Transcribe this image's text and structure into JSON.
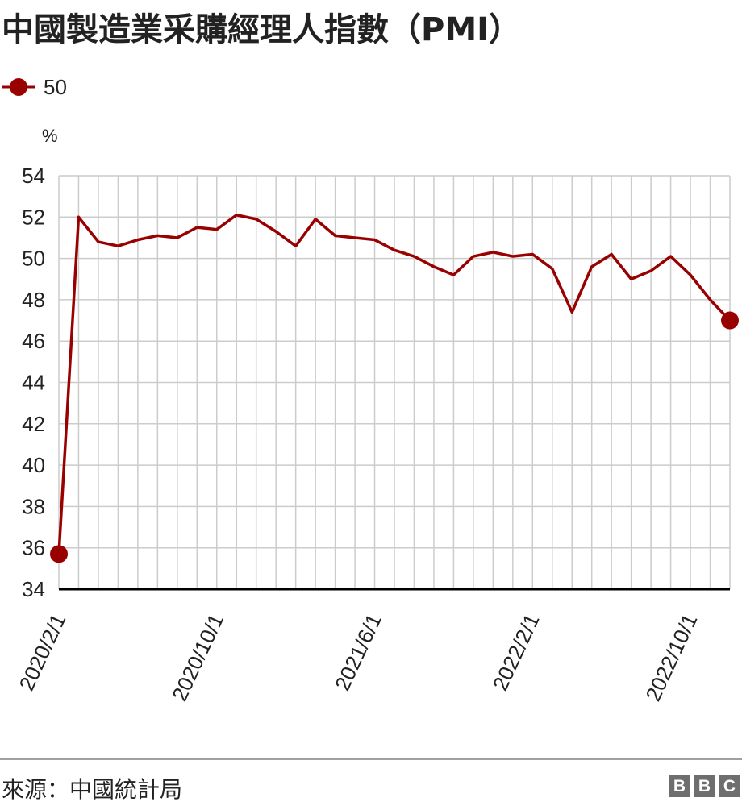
{
  "title": "中國製造業采購經理人指數（PMI）",
  "legend": {
    "label": "50"
  },
  "unit": "%",
  "source": "來源：中國統計局",
  "logo": [
    "B",
    "B",
    "C"
  ],
  "colors": {
    "line": "#990000",
    "grid": "#cccccc",
    "axis": "#000000",
    "text": "#222222"
  },
  "chart_data": {
    "type": "line",
    "title": "中國製造業采購經理人指數（PMI）",
    "ylabel": "%",
    "ylim": [
      34,
      54
    ],
    "yticks": [
      34,
      36,
      38,
      40,
      42,
      44,
      46,
      48,
      50,
      52,
      54
    ],
    "grid": true,
    "legend_position": "top-left",
    "xtick_labels": [
      {
        "index": 0,
        "label": "2020/2/1"
      },
      {
        "index": 8,
        "label": "2020/10/1"
      },
      {
        "index": 16,
        "label": "2021/6/1"
      },
      {
        "index": 24,
        "label": "2022/2/1"
      },
      {
        "index": 32,
        "label": "2022/10/1"
      }
    ],
    "x": [
      "2020/2",
      "2020/3",
      "2020/4",
      "2020/5",
      "2020/6",
      "2020/7",
      "2020/8",
      "2020/9",
      "2020/10",
      "2020/11",
      "2020/12",
      "2021/1",
      "2021/2",
      "2021/3",
      "2021/4",
      "2021/5",
      "2021/6",
      "2021/7",
      "2021/8",
      "2021/9",
      "2021/10",
      "2021/11",
      "2021/12",
      "2022/1",
      "2022/2",
      "2022/3",
      "2022/4",
      "2022/5",
      "2022/6",
      "2022/7",
      "2022/8",
      "2022/9",
      "2022/10",
      "2022/11",
      "2022/12"
    ],
    "series": [
      {
        "name": "50",
        "values": [
          35.7,
          52.0,
          50.8,
          50.6,
          50.9,
          51.1,
          51.0,
          51.5,
          51.4,
          52.1,
          51.9,
          51.3,
          50.6,
          51.9,
          51.1,
          51.0,
          50.9,
          50.4,
          50.1,
          49.6,
          49.2,
          50.1,
          50.3,
          50.1,
          50.2,
          49.5,
          47.4,
          49.6,
          50.2,
          49.0,
          49.4,
          50.1,
          49.2,
          48.0,
          47.0
        ]
      }
    ],
    "markers": [
      0,
      34
    ]
  }
}
